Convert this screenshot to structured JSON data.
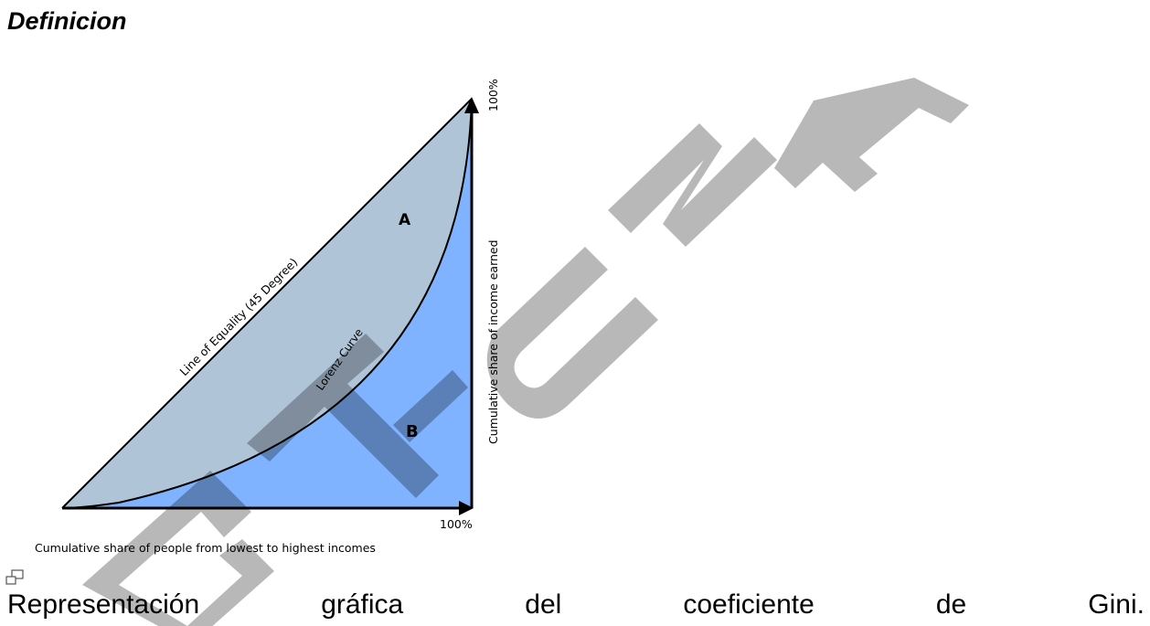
{
  "heading": "Definicion",
  "diagram": {
    "label_a": "A",
    "label_b": "B",
    "line_of_equality": "Line of Equality (45 Degree)",
    "lorenz_curve": "Lorenz Curve",
    "y_axis_label": "Cumulative share of income earned",
    "x_axis_label": "Cumulative share of people from lowest to highest incomes",
    "y_max_label": "100%",
    "x_max_label": "100%",
    "colors": {
      "area_a": "#b0c4d8",
      "area_b": "#7fb2ff",
      "lines": "#000000"
    }
  },
  "watermark": "GT-UNA",
  "caption": {
    "words": [
      "Representación",
      "gráfica",
      "del",
      "coeficiente",
      "de",
      "Gini."
    ]
  },
  "icons": {
    "caption_icon": "image-frame-icon"
  }
}
